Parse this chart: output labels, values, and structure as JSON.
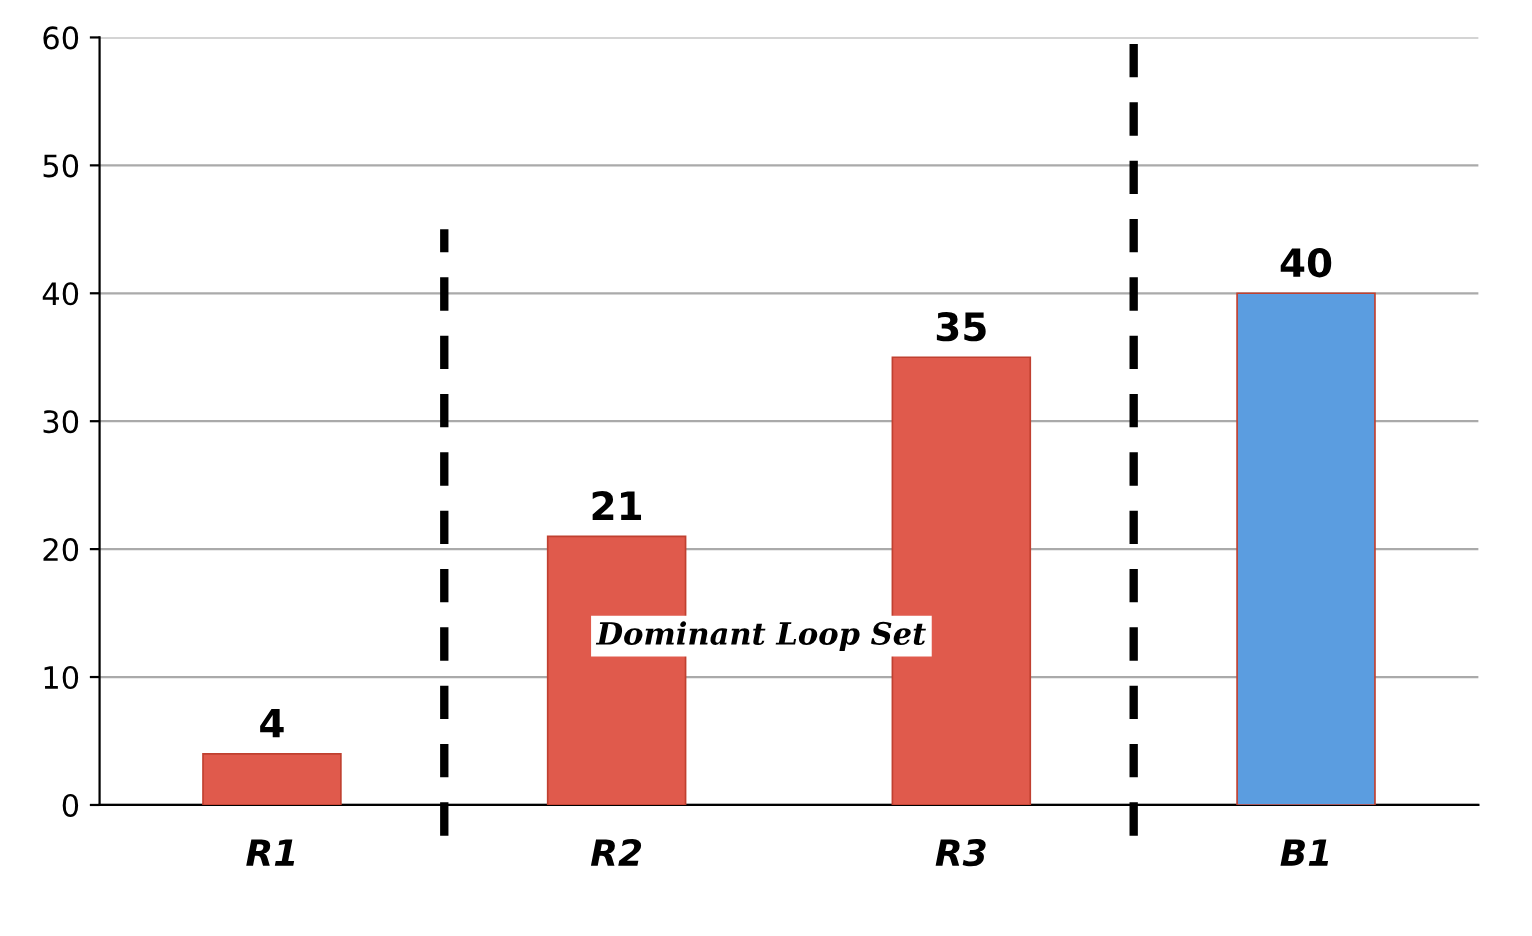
{
  "chart_data": {
    "type": "bar",
    "categories": [
      "R1",
      "R2",
      "R3",
      "B1"
    ],
    "values": [
      4,
      21,
      35,
      40
    ],
    "colors": [
      "#e05a4c",
      "#e05a4c",
      "#e05a4c",
      "#5b9de0"
    ],
    "ylim": [
      0,
      60
    ],
    "yticks": [
      0,
      10,
      20,
      30,
      40,
      50,
      60
    ],
    "grid": "y",
    "data_labels": true,
    "annotations": [
      "Dominant Loop Set"
    ]
  }
}
